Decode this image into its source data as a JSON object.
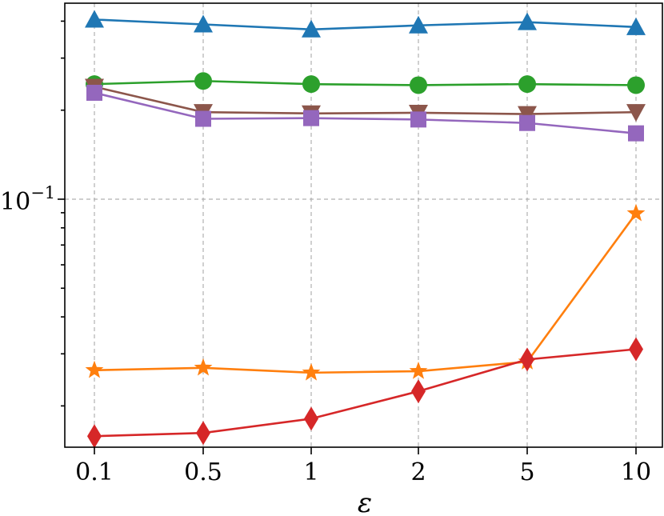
{
  "chart_data": {
    "type": "line",
    "title": "",
    "xlabel": "ε",
    "ylabel": "",
    "yscale": "log",
    "ylim": [
      0.0145,
      0.46
    ],
    "categories": [
      "0.1",
      "0.5",
      "1",
      "2",
      "5",
      "10"
    ],
    "y_tick_label": {
      "base": "10",
      "exponent": "−1"
    },
    "y_tick_value": 0.1,
    "grid": true,
    "series": [
      {
        "name": "blue-triangle-up",
        "color": "#1f77b4",
        "marker": "triangle-up",
        "values": [
          0.405,
          0.39,
          0.375,
          0.387,
          0.397,
          0.382
        ]
      },
      {
        "name": "green-circle",
        "color": "#2ca02c",
        "marker": "circle",
        "values": [
          0.245,
          0.251,
          0.245,
          0.243,
          0.245,
          0.243
        ]
      },
      {
        "name": "brown-triangle-down",
        "color": "#8c564b",
        "marker": "triangle-down",
        "values": [
          0.24,
          0.197,
          0.195,
          0.196,
          0.194,
          0.197
        ]
      },
      {
        "name": "purple-square",
        "color": "#9467bd",
        "marker": "square",
        "values": [
          0.229,
          0.187,
          0.188,
          0.186,
          0.181,
          0.167
        ]
      },
      {
        "name": "orange-star",
        "color": "#ff7f0e",
        "marker": "star",
        "values": [
          0.0264,
          0.0269,
          0.0259,
          0.0262,
          0.0282,
          0.0895
        ]
      },
      {
        "name": "red-diamond",
        "color": "#d62728",
        "marker": "diamond",
        "values": [
          0.0158,
          0.0162,
          0.0181,
          0.0224,
          0.0287,
          0.0311
        ]
      }
    ]
  }
}
